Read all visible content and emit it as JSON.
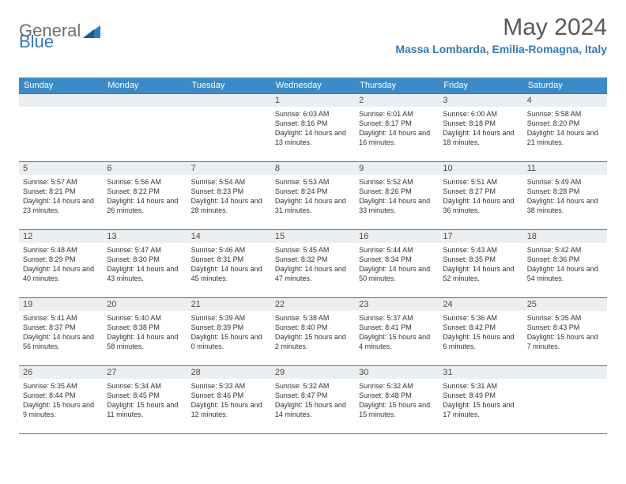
{
  "logo": {
    "part1": "General",
    "part2": "Blue"
  },
  "title": "May 2024",
  "location": "Massa Lombarda, Emilia-Romagna, Italy",
  "colors": {
    "header_bg": "#3b8bc8",
    "header_text": "#ffffff",
    "border": "#2f7bbf",
    "daynum_bg": "#eceff1",
    "title_text": "#5a5a5a",
    "location_text": "#2f7bbf",
    "logo_gray": "#6e6e6e",
    "logo_blue": "#2f7bbf",
    "body_text": "#333333"
  },
  "day_names": [
    "Sunday",
    "Monday",
    "Tuesday",
    "Wednesday",
    "Thursday",
    "Friday",
    "Saturday"
  ],
  "weeks": [
    [
      null,
      null,
      null,
      {
        "n": "1",
        "sr": "6:03 AM",
        "ss": "8:16 PM",
        "dl": "14 hours and 13 minutes."
      },
      {
        "n": "2",
        "sr": "6:01 AM",
        "ss": "8:17 PM",
        "dl": "14 hours and 16 minutes."
      },
      {
        "n": "3",
        "sr": "6:00 AM",
        "ss": "8:18 PM",
        "dl": "14 hours and 18 minutes."
      },
      {
        "n": "4",
        "sr": "5:58 AM",
        "ss": "8:20 PM",
        "dl": "14 hours and 21 minutes."
      }
    ],
    [
      {
        "n": "5",
        "sr": "5:57 AM",
        "ss": "8:21 PM",
        "dl": "14 hours and 23 minutes."
      },
      {
        "n": "6",
        "sr": "5:56 AM",
        "ss": "8:22 PM",
        "dl": "14 hours and 26 minutes."
      },
      {
        "n": "7",
        "sr": "5:54 AM",
        "ss": "8:23 PM",
        "dl": "14 hours and 28 minutes."
      },
      {
        "n": "8",
        "sr": "5:53 AM",
        "ss": "8:24 PM",
        "dl": "14 hours and 31 minutes."
      },
      {
        "n": "9",
        "sr": "5:52 AM",
        "ss": "8:26 PM",
        "dl": "14 hours and 33 minutes."
      },
      {
        "n": "10",
        "sr": "5:51 AM",
        "ss": "8:27 PM",
        "dl": "14 hours and 36 minutes."
      },
      {
        "n": "11",
        "sr": "5:49 AM",
        "ss": "8:28 PM",
        "dl": "14 hours and 38 minutes."
      }
    ],
    [
      {
        "n": "12",
        "sr": "5:48 AM",
        "ss": "8:29 PM",
        "dl": "14 hours and 40 minutes."
      },
      {
        "n": "13",
        "sr": "5:47 AM",
        "ss": "8:30 PM",
        "dl": "14 hours and 43 minutes."
      },
      {
        "n": "14",
        "sr": "5:46 AM",
        "ss": "8:31 PM",
        "dl": "14 hours and 45 minutes."
      },
      {
        "n": "15",
        "sr": "5:45 AM",
        "ss": "8:32 PM",
        "dl": "14 hours and 47 minutes."
      },
      {
        "n": "16",
        "sr": "5:44 AM",
        "ss": "8:34 PM",
        "dl": "14 hours and 50 minutes."
      },
      {
        "n": "17",
        "sr": "5:43 AM",
        "ss": "8:35 PM",
        "dl": "14 hours and 52 minutes."
      },
      {
        "n": "18",
        "sr": "5:42 AM",
        "ss": "8:36 PM",
        "dl": "14 hours and 54 minutes."
      }
    ],
    [
      {
        "n": "19",
        "sr": "5:41 AM",
        "ss": "8:37 PM",
        "dl": "14 hours and 56 minutes."
      },
      {
        "n": "20",
        "sr": "5:40 AM",
        "ss": "8:38 PM",
        "dl": "14 hours and 58 minutes."
      },
      {
        "n": "21",
        "sr": "5:39 AM",
        "ss": "8:39 PM",
        "dl": "15 hours and 0 minutes."
      },
      {
        "n": "22",
        "sr": "5:38 AM",
        "ss": "8:40 PM",
        "dl": "15 hours and 2 minutes."
      },
      {
        "n": "23",
        "sr": "5:37 AM",
        "ss": "8:41 PM",
        "dl": "15 hours and 4 minutes."
      },
      {
        "n": "24",
        "sr": "5:36 AM",
        "ss": "8:42 PM",
        "dl": "15 hours and 6 minutes."
      },
      {
        "n": "25",
        "sr": "5:35 AM",
        "ss": "8:43 PM",
        "dl": "15 hours and 7 minutes."
      }
    ],
    [
      {
        "n": "26",
        "sr": "5:35 AM",
        "ss": "8:44 PM",
        "dl": "15 hours and 9 minutes."
      },
      {
        "n": "27",
        "sr": "5:34 AM",
        "ss": "8:45 PM",
        "dl": "15 hours and 11 minutes."
      },
      {
        "n": "28",
        "sr": "5:33 AM",
        "ss": "8:46 PM",
        "dl": "15 hours and 12 minutes."
      },
      {
        "n": "29",
        "sr": "5:32 AM",
        "ss": "8:47 PM",
        "dl": "15 hours and 14 minutes."
      },
      {
        "n": "30",
        "sr": "5:32 AM",
        "ss": "8:48 PM",
        "dl": "15 hours and 15 minutes."
      },
      {
        "n": "31",
        "sr": "5:31 AM",
        "ss": "8:49 PM",
        "dl": "15 hours and 17 minutes."
      },
      null
    ]
  ],
  "labels": {
    "sunrise": "Sunrise:",
    "sunset": "Sunset:",
    "daylight": "Daylight:"
  }
}
